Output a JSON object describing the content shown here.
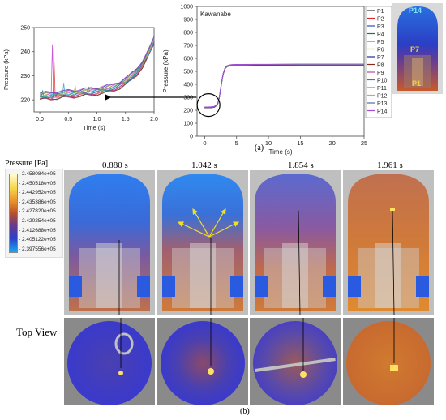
{
  "chart_data": [
    {
      "id": "inset",
      "type": "line",
      "xlabel": "Time (s)",
      "ylabel": "Pressure (kPa)",
      "xlim": [
        -0.1,
        2.0
      ],
      "ylim": [
        215,
        250
      ],
      "xticks": [
        "0.0",
        "0.5",
        "1.0",
        "1.5",
        "2.0"
      ],
      "yticks": [
        "220",
        "230",
        "240",
        "250"
      ],
      "x": [
        0.0,
        0.1,
        0.2,
        0.3,
        0.4,
        0.5,
        0.6,
        0.7,
        0.8,
        0.9,
        1.0,
        1.1,
        1.2,
        1.3,
        1.4,
        1.5,
        1.6,
        1.7,
        1.8,
        1.9,
        2.0
      ],
      "base": [
        221.5,
        221.6,
        221.8,
        222.0,
        222.2,
        222.4,
        222.6,
        222.9,
        223.1,
        223.4,
        223.7,
        224.1,
        224.6,
        225.3,
        226.3,
        227.6,
        229.4,
        231.8,
        235.0,
        239.2,
        244.5
      ],
      "spikes": [
        {
          "series": "P2",
          "x": 0.25,
          "y": 236
        },
        {
          "series": "P5",
          "x": 0.22,
          "y": 243
        },
        {
          "series": "P11",
          "x": 0.42,
          "y": 227
        },
        {
          "series": "P12",
          "x": 0.62,
          "y": 226
        },
        {
          "series": "P4",
          "x": 0.85,
          "y": 225.5
        },
        {
          "series": "P10",
          "x": 0.05,
          "y": 224
        }
      ]
    },
    {
      "id": "main",
      "type": "line",
      "annotation": "Kawanabe",
      "xlabel": "Time (s)",
      "ylabel": "Pressure (kPa)",
      "xlim": [
        -1.2,
        25
      ],
      "ylim": [
        0,
        1000
      ],
      "xticks": [
        "0",
        "5",
        "10",
        "15",
        "20",
        "25"
      ],
      "yticks": [
        "0",
        "100",
        "200",
        "300",
        "400",
        "500",
        "600",
        "700",
        "800",
        "900",
        "1000"
      ],
      "x": [
        0,
        0.5,
        1.0,
        1.5,
        2.0,
        2.3,
        2.6,
        2.9,
        3.2,
        3.5,
        4.0,
        4.5,
        5.0,
        6.0,
        8.0,
        10.0,
        15.0,
        20.0,
        25.0
      ],
      "y": [
        222,
        222,
        223,
        226,
        245,
        300,
        400,
        480,
        525,
        540,
        547,
        549,
        550,
        550,
        551,
        551,
        552,
        552,
        552
      ],
      "series": [
        {
          "name": "P1",
          "color": "#3a3a3a"
        },
        {
          "name": "P2",
          "color": "#e0242b"
        },
        {
          "name": "P3",
          "color": "#2a4bc9"
        },
        {
          "name": "P4",
          "color": "#1f7a2c"
        },
        {
          "name": "P5",
          "color": "#c03ad6"
        },
        {
          "name": "P6",
          "color": "#a8a81a"
        },
        {
          "name": "P7",
          "color": "#1b2a9a"
        },
        {
          "name": "P8",
          "color": "#8a2a1a"
        },
        {
          "name": "P9",
          "color": "#b84aa8"
        },
        {
          "name": "P10",
          "color": "#2a8a8a"
        },
        {
          "name": "P11",
          "color": "#2aa8c8"
        },
        {
          "name": "P12",
          "color": "#c8a85a"
        },
        {
          "name": "P13",
          "color": "#5a6a9a"
        },
        {
          "name": "P14",
          "color": "#a84ad8"
        }
      ]
    }
  ],
  "figure": {
    "label_a": "(a)",
    "label_b": "(b)",
    "vessel_labels": [
      "P14",
      "P7",
      "P1"
    ],
    "colorbar_title": "Pressure [Pa]",
    "colorbar_ticks": [
      "2.458084e+05",
      "2.450518e+05",
      "2.442952e+05",
      "2.435386e+05",
      "2.427820e+05",
      "2.420254e+05",
      "2.412688e+05",
      "2.405122e+05",
      "2.397556e+05"
    ],
    "times": [
      "0.880 s",
      "1.042 s",
      "1.854 s",
      "1.961 s"
    ],
    "top_view_label": "Top View"
  }
}
